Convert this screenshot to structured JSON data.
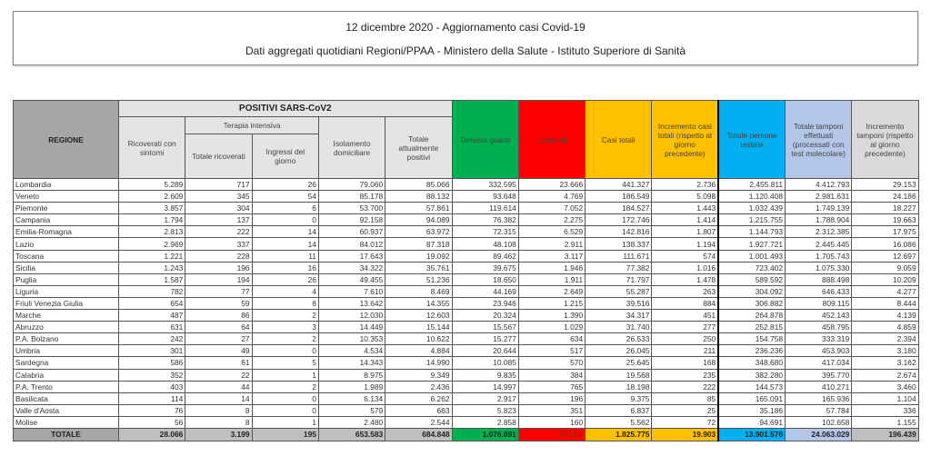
{
  "header": {
    "title": "12 dicembre 2020 - Aggiornamento casi Covid-19",
    "subtitle": "Dati aggregati quotidiani Regioni/PPAA - Ministero della Salute - Istituto Superiore di Sanità"
  },
  "columns": {
    "regione": "REGIONE",
    "positivi": "POSITIVI SARS-CoV2",
    "terapia": "Terapia intensiva",
    "ricoverati": "Ricoverati con sintomi",
    "totale_ricoverati": "Totale ricoverati",
    "ingressi": "Ingressi del giorno",
    "isolamento": "Isolamento domiciliare",
    "totale_positivi": "Totale attualmente positivi",
    "dimessi": "Dimessi guariti",
    "deceduti": "Deceduti",
    "casi": "Casi totali",
    "incremento_casi": "Incremento casi totali (rispetto al giorno precedente)",
    "persone": "Totale persone testate",
    "tamponi": "Totale tamponi effettuati (processati con test molecolare)",
    "incremento_tamponi": "Incremento tamponi (rispetto al giorno precedente)"
  },
  "colors": {
    "dimessi": "#00b050",
    "deceduti": "#ff0000",
    "casi": "#ffc000",
    "persone": "#00b0f0",
    "tamponi": "#b4c6e7"
  },
  "rows": [
    [
      "Lombardia",
      "5.289",
      "717",
      "26",
      "79.060",
      "85.066",
      "332.595",
      "23.666",
      "441.327",
      "2.736",
      "2.455.811",
      "4.412.793",
      "29.153"
    ],
    [
      "Veneto",
      "2.609",
      "345",
      "54",
      "85.178",
      "88.132",
      "93.648",
      "4.769",
      "186.549",
      "5.098",
      "1.120.408",
      "2.981.631",
      "24.186"
    ],
    [
      "Piemonte",
      "3.857",
      "304",
      "6",
      "53.700",
      "57.861",
      "119.614",
      "7.052",
      "184.527",
      "1.443",
      "1.032.439",
      "1.749.139",
      "18.227"
    ],
    [
      "Campania",
      "1.794",
      "137",
      "0",
      "92.158",
      "94.089",
      "76.382",
      "2.275",
      "172.746",
      "1.414",
      "1.215.755",
      "1.788.904",
      "19.663"
    ],
    [
      "Emilia-Romagna",
      "2.813",
      "222",
      "14",
      "60.937",
      "63.972",
      "72.315",
      "6.529",
      "142.816",
      "1.807",
      "1.144.793",
      "2.312.385",
      "17.975"
    ],
    [
      "Lazio",
      "2.969",
      "337",
      "14",
      "84.012",
      "87.318",
      "48.108",
      "2.911",
      "138.337",
      "1.194",
      "1.927.721",
      "2.445.445",
      "16.086"
    ],
    [
      "Toscana",
      "1.221",
      "228",
      "11",
      "17.643",
      "19.092",
      "89.462",
      "3.117",
      "111.671",
      "574",
      "1.001.493",
      "1.705.743",
      "12.697"
    ],
    [
      "Sicilia",
      "1.243",
      "196",
      "16",
      "34.322",
      "35.761",
      "39.675",
      "1.946",
      "77.382",
      "1.016",
      "723.402",
      "1.075.330",
      "9.059"
    ],
    [
      "Puglia",
      "1.587",
      "194",
      "26",
      "49.455",
      "51.236",
      "18.650",
      "1.911",
      "71.797",
      "1.478",
      "589.592",
      "888.498",
      "10.209"
    ],
    [
      "Liguria",
      "782",
      "77",
      "4",
      "7.610",
      "8.469",
      "44.169",
      "2.649",
      "55.287",
      "263",
      "304.092",
      "646.433",
      "4.277"
    ],
    [
      "Friuli Venezia Giulia",
      "654",
      "59",
      "8",
      "13.642",
      "14.355",
      "23.946",
      "1.215",
      "39.516",
      "884",
      "306.882",
      "809.115",
      "8.444"
    ],
    [
      "Marche",
      "487",
      "86",
      "2",
      "12.030",
      "12.603",
      "20.324",
      "1.390",
      "34.317",
      "451",
      "264.878",
      "452.143",
      "4.139"
    ],
    [
      "Abruzzo",
      "631",
      "64",
      "3",
      "14.449",
      "15.144",
      "15.567",
      "1.029",
      "31.740",
      "277",
      "252.815",
      "458.795",
      "4.859"
    ],
    [
      "P.A. Bolzano",
      "242",
      "27",
      "2",
      "10.353",
      "10.622",
      "15.277",
      "634",
      "26.533",
      "250",
      "154.758",
      "333.319",
      "2.394"
    ],
    [
      "Umbria",
      "301",
      "49",
      "0",
      "4.534",
      "4.884",
      "20.644",
      "517",
      "26.045",
      "211",
      "236.236",
      "453.903",
      "3.180"
    ],
    [
      "Sardegna",
      "586",
      "61",
      "5",
      "14.343",
      "14.990",
      "10.085",
      "570",
      "25.645",
      "168",
      "348.680",
      "417.034",
      "3.162"
    ],
    [
      "Calabria",
      "352",
      "22",
      "1",
      "8.975",
      "9.349",
      "9.835",
      "384",
      "19.568",
      "235",
      "382.280",
      "395.770",
      "2.674"
    ],
    [
      "P.A. Trento",
      "403",
      "44",
      "2",
      "1.989",
      "2.436",
      "14.997",
      "765",
      "18.198",
      "222",
      "144.573",
      "410.271",
      "3.460"
    ],
    [
      "Basilicata",
      "114",
      "14",
      "0",
      "6.134",
      "6.262",
      "2.917",
      "196",
      "9.375",
      "85",
      "165.091",
      "165.936",
      "1.104"
    ],
    [
      "Valle d'Aosta",
      "76",
      "8",
      "0",
      "579",
      "663",
      "5.823",
      "351",
      "6.837",
      "25",
      "35.186",
      "57.784",
      "336"
    ],
    [
      "Molise",
      "56",
      "8",
      "1",
      "2.480",
      "2.544",
      "2.858",
      "160",
      "5.562",
      "72",
      "94.691",
      "102.658",
      "1.155"
    ]
  ],
  "total": [
    "TOTALE",
    "28.066",
    "3.199",
    "195",
    "653.583",
    "684.848",
    "1.076.891",
    "64.036",
    "1.825.775",
    "19.903",
    "13.901.576",
    "24.063.029",
    "196.439"
  ]
}
